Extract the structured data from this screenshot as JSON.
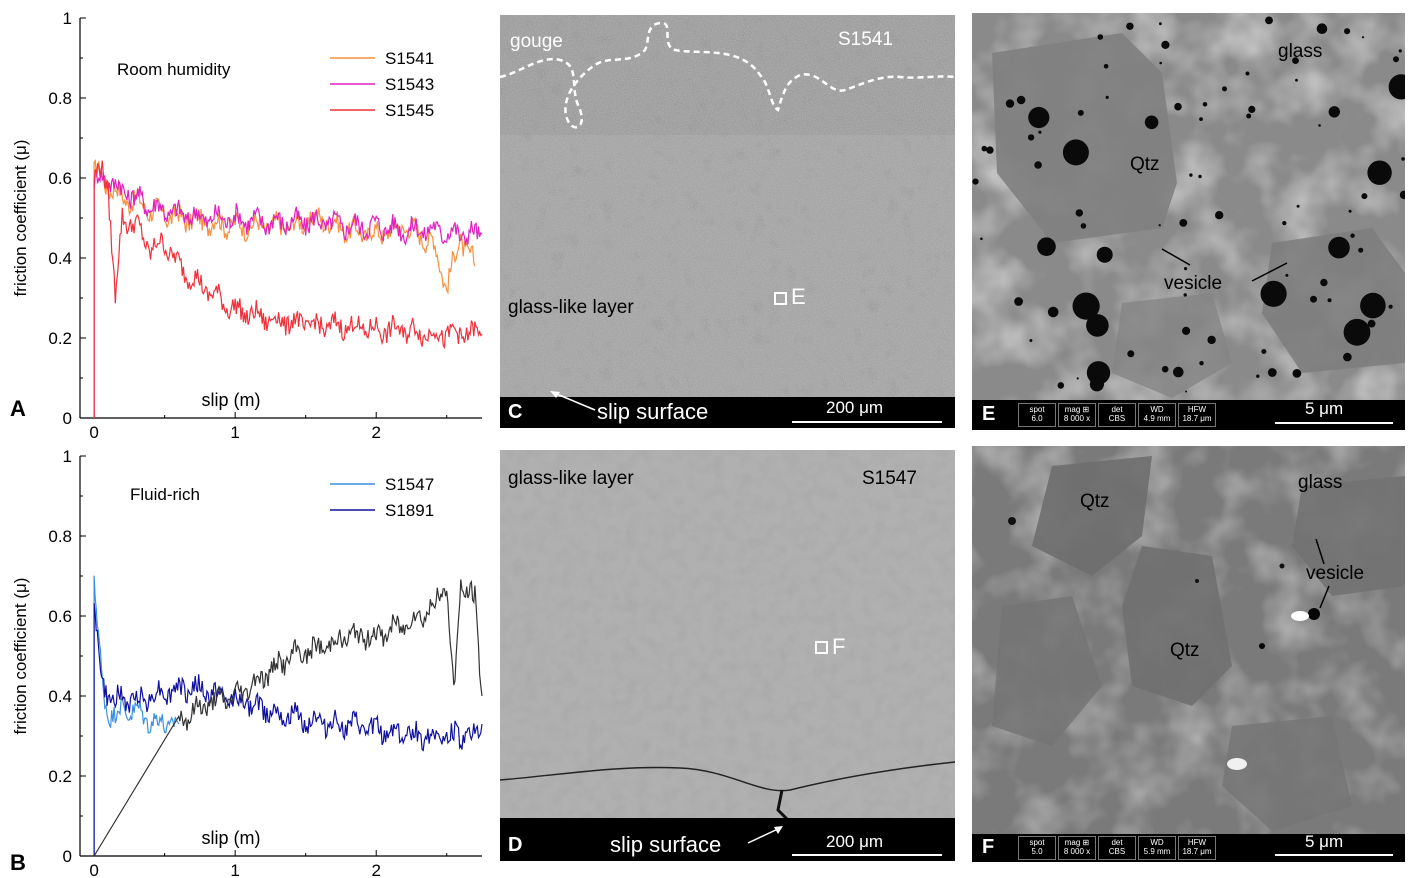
{
  "chart_data": [
    {
      "type": "line",
      "panel": "A",
      "annotation": "Room humidity",
      "xlabel": "slip (m)",
      "ylabel": "friction coefficient (μ)",
      "xlim": [
        -0.1,
        2.75
      ],
      "ylim": [
        0,
        1
      ],
      "x_ticks": [
        "0",
        "1",
        "2"
      ],
      "y_ticks": [
        "0",
        "0.2",
        "0.4",
        "0.6",
        "0.8",
        "1"
      ],
      "legend_position": "top-right",
      "series": [
        {
          "name": "S1541",
          "color": "#f6903d",
          "x": [
            0.0,
            0.05,
            0.1,
            0.15,
            0.2,
            0.3,
            0.4,
            0.5,
            0.6,
            0.8,
            1.0,
            1.2,
            1.4,
            1.6,
            1.8,
            2.0,
            2.2,
            2.4,
            2.5,
            2.6,
            2.7
          ],
          "y": [
            0.62,
            0.6,
            0.58,
            0.57,
            0.55,
            0.54,
            0.52,
            0.51,
            0.5,
            0.49,
            0.48,
            0.48,
            0.48,
            0.5,
            0.47,
            0.46,
            0.48,
            0.44,
            0.33,
            0.45,
            0.38
          ]
        },
        {
          "name": "S1543",
          "color": "#e020c0",
          "x": [
            0.0,
            0.05,
            0.1,
            0.15,
            0.2,
            0.3,
            0.4,
            0.5,
            0.6,
            0.8,
            1.0,
            1.2,
            1.4,
            1.6,
            1.8,
            2.0,
            2.2,
            2.4,
            2.6,
            2.75
          ],
          "y": [
            0.59,
            0.6,
            0.6,
            0.58,
            0.57,
            0.55,
            0.53,
            0.52,
            0.51,
            0.5,
            0.5,
            0.49,
            0.49,
            0.49,
            0.48,
            0.48,
            0.47,
            0.47,
            0.46,
            0.46
          ]
        },
        {
          "name": "S1545",
          "color": "#f0303a",
          "x": [
            0.0,
            0.05,
            0.1,
            0.15,
            0.2,
            0.3,
            0.4,
            0.5,
            0.6,
            0.8,
            1.0,
            1.2,
            1.4,
            1.6,
            1.8,
            2.0,
            2.2,
            2.4,
            2.6,
            2.75
          ],
          "y": [
            0.6,
            0.62,
            0.58,
            0.3,
            0.5,
            0.48,
            0.42,
            0.44,
            0.38,
            0.32,
            0.27,
            0.25,
            0.24,
            0.23,
            0.23,
            0.22,
            0.22,
            0.21,
            0.21,
            0.21
          ]
        }
      ]
    },
    {
      "type": "line",
      "panel": "B",
      "annotation": "Fluid-rich",
      "xlabel": "slip (m)",
      "ylabel": "friction coefficient (μ)",
      "xlim": [
        -0.1,
        2.75
      ],
      "ylim": [
        0,
        1
      ],
      "x_ticks": [
        "0",
        "1",
        "2"
      ],
      "y_ticks": [
        "0",
        "0.2",
        "0.4",
        "0.6",
        "0.8",
        "1"
      ],
      "legend_position": "top-right",
      "series": [
        {
          "name": "S1547",
          "color": "#3a90e0",
          "x": [
            0.0,
            0.03,
            0.06,
            0.1,
            0.15,
            0.2,
            0.3,
            0.4,
            0.5,
            0.6
          ],
          "y": [
            0.68,
            0.55,
            0.42,
            0.36,
            0.35,
            0.37,
            0.36,
            0.34,
            0.33,
            0.33
          ]
        },
        {
          "name": "S1891",
          "color": "#1010a0",
          "x": [
            0.0,
            0.03,
            0.06,
            0.1,
            0.15,
            0.2,
            0.3,
            0.5,
            0.7,
            0.9,
            1.1,
            1.3,
            1.5,
            1.7,
            1.9,
            2.1,
            2.3,
            2.5,
            2.7,
            2.75
          ],
          "y": [
            0.65,
            0.5,
            0.43,
            0.4,
            0.39,
            0.39,
            0.39,
            0.41,
            0.42,
            0.4,
            0.38,
            0.36,
            0.34,
            0.33,
            0.32,
            0.31,
            0.3,
            0.3,
            0.3,
            0.33
          ]
        },
        {
          "name": "",
          "color": "#333333",
          "x": [
            0.6,
            0.8,
            1.0,
            1.2,
            1.4,
            1.6,
            1.8,
            2.0,
            2.2,
            2.4,
            2.5,
            2.55,
            2.6,
            2.7,
            2.75
          ],
          "y": [
            0.34,
            0.38,
            0.4,
            0.45,
            0.5,
            0.52,
            0.55,
            0.55,
            0.58,
            0.62,
            0.68,
            0.4,
            0.68,
            0.64,
            0.4
          ]
        }
      ]
    }
  ],
  "panels": {
    "A": {
      "letter": "A"
    },
    "B": {
      "letter": "B"
    },
    "C": {
      "letter": "C",
      "sample": "S1541",
      "upper_label": "gouge",
      "layer_label": "glass-like layer",
      "surface_label": "slip surface",
      "box_label": "E",
      "scale": "200 μm"
    },
    "D": {
      "letter": "D",
      "sample": "S1547",
      "layer_label": "glass-like layer",
      "surface_label": "slip surface",
      "box_label": "F",
      "scale": "200 μm"
    },
    "E": {
      "letter": "E",
      "labels": {
        "glass": "glass",
        "qtz": "Qtz",
        "vesicle": "vesicle"
      },
      "meta": [
        [
          "spot",
          "6.0"
        ],
        [
          "mag ⊞",
          "8 000 x"
        ],
        [
          "det",
          "CBS"
        ],
        [
          "WD",
          "4.9 mm"
        ],
        [
          "HFW",
          "18.7 μm"
        ]
      ],
      "scale": "5 μm"
    },
    "F": {
      "letter": "F",
      "labels": {
        "glass": "glass",
        "qtz1": "Qtz",
        "qtz2": "Qtz",
        "vesicle": "vesicle"
      },
      "meta": [
        [
          "spot",
          "5.0"
        ],
        [
          "mag ⊞",
          "8 000 x"
        ],
        [
          "det",
          "CBS"
        ],
        [
          "WD",
          "5.9 mm"
        ],
        [
          "HFW",
          "18.7 μm"
        ]
      ],
      "scale": "5 μm"
    }
  },
  "colors": {
    "background": "#ffffff",
    "sem_base": "#9a9a9a",
    "sem_light": "#bdbdbd",
    "sem_dark": "#6e6e6e"
  }
}
